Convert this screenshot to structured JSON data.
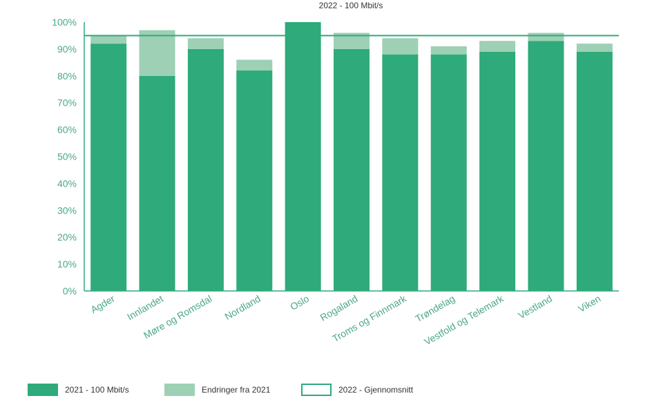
{
  "chart_data": {
    "type": "bar",
    "title": "2022 - 100 Mbit/s",
    "categories": [
      "Agder",
      "Innlandet",
      "Møre og Romsdal",
      "Nordland",
      "Oslo",
      "Rogaland",
      "Troms og Finnmark",
      "Trøndelag",
      "Vestfold og Telemark",
      "Vestland",
      "Viken"
    ],
    "series": [
      {
        "name": "2021 - 100 Mbit/s",
        "values": [
          92,
          80,
          90,
          82,
          100,
          90,
          88,
          88,
          89,
          93,
          89
        ],
        "color": "#2eaa7b"
      },
      {
        "name": "Endringer fra 2021",
        "values": [
          3,
          17,
          4,
          4,
          0,
          6,
          6,
          3,
          4,
          3,
          3
        ],
        "color": "#9dd0b4"
      }
    ],
    "average_line": {
      "name": "2022 - Gjennomsnitt",
      "value": 95,
      "color": "#2eaa7b"
    },
    "stacked": true,
    "ylim": [
      0,
      100
    ],
    "yticks": [
      "0%",
      "10%",
      "20%",
      "30%",
      "40%",
      "50%",
      "60%",
      "70%",
      "80%",
      "90%",
      "100%"
    ],
    "xlabel": "",
    "ylabel": "",
    "grid": false,
    "legend_position": "bottom"
  }
}
